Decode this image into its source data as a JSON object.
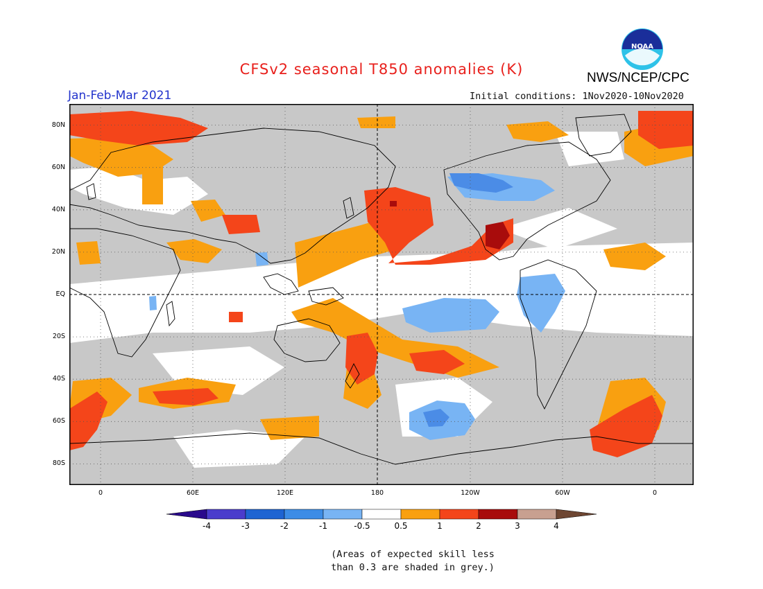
{
  "header": {
    "title": "CFSv2 seasonal T850 anomalies (K)",
    "agency": "NWS/NCEP/CPC",
    "logo_text": "NOAA",
    "season": "Jan-Feb-Mar 2021",
    "initial_conditions": "Initial conditions: 1Nov2020-10Nov2020"
  },
  "map": {
    "projection": "cylindrical equidistant",
    "grid": true,
    "lat_labels": [
      "80N",
      "60N",
      "40N",
      "20N",
      "EQ",
      "20S",
      "40S",
      "60S",
      "80S"
    ],
    "lon_labels": [
      "0",
      "60E",
      "120E",
      "180",
      "120W",
      "60W",
      "0"
    ],
    "colors": {
      "no_skill_grey": "#c8c8c8",
      "neutral": "#ffffff",
      "warm_0_5_1": "#f9a010",
      "warm_1_2": "#f4451a",
      "warm_2_3": "#a80c0c",
      "cool_minus0_5_minus1": "#78b4f4",
      "cool_minus1_minus2": "#4b8ce6"
    }
  },
  "colorbar": {
    "labels": [
      "-4",
      "-3",
      "-2",
      "-1",
      "-0.5",
      "0.5",
      "1",
      "2",
      "3",
      "4"
    ],
    "colors": [
      "#2a0a8c",
      "#4a3ccc",
      "#1e64d2",
      "#3c8ce6",
      "#78b4f4",
      "#ffffff",
      "#f9a010",
      "#f4451a",
      "#a80c0c",
      "#c8a090",
      "#6e4632"
    ]
  },
  "footnote": {
    "line1": "(Areas of expected skill less",
    "line2": "than 0.3 are shaded in grey.)"
  }
}
